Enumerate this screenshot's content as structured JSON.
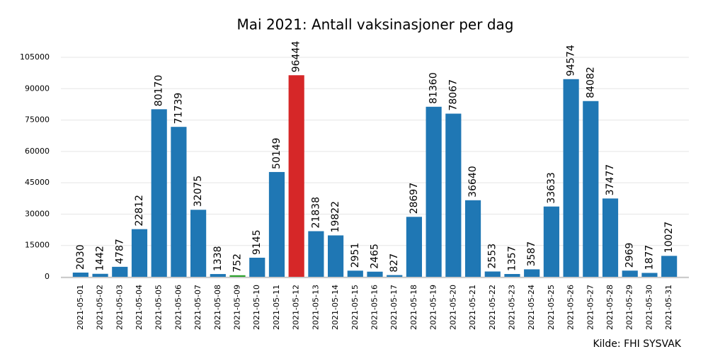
{
  "chart_data": {
    "type": "bar",
    "title": "Mai 2021: Antall vaksinasjoner per dag",
    "source": "Kilde: FHI SYSVAK",
    "categories": [
      "2021-05-01",
      "2021-05-02",
      "2021-05-03",
      "2021-05-04",
      "2021-05-05",
      "2021-05-06",
      "2021-05-07",
      "2021-05-08",
      "2021-05-09",
      "2021-05-10",
      "2021-05-11",
      "2021-05-12",
      "2021-05-13",
      "2021-05-14",
      "2021-05-15",
      "2021-05-16",
      "2021-05-17",
      "2021-05-18",
      "2021-05-19",
      "2021-05-20",
      "2021-05-21",
      "2021-05-22",
      "2021-05-23",
      "2021-05-24",
      "2021-05-25",
      "2021-05-26",
      "2021-05-27",
      "2021-05-28",
      "2021-05-29",
      "2021-05-30",
      "2021-05-31"
    ],
    "values": [
      2030,
      1442,
      4787,
      22812,
      80170,
      71739,
      32075,
      1338,
      752,
      9145,
      50149,
      96444,
      21838,
      19822,
      2951,
      2465,
      827,
      28697,
      81360,
      78067,
      36640,
      2553,
      1357,
      3587,
      33633,
      94574,
      84082,
      37477,
      2969,
      1877,
      10027
    ],
    "colors": [
      "#1f77b4",
      "#1f77b4",
      "#1f77b4",
      "#1f77b4",
      "#1f77b4",
      "#1f77b4",
      "#1f77b4",
      "#1f77b4",
      "#2ca02c",
      "#1f77b4",
      "#1f77b4",
      "#d62728",
      "#1f77b4",
      "#1f77b4",
      "#1f77b4",
      "#1f77b4",
      "#1f77b4",
      "#1f77b4",
      "#1f77b4",
      "#1f77b4",
      "#1f77b4",
      "#1f77b4",
      "#1f77b4",
      "#1f77b4",
      "#1f77b4",
      "#1f77b4",
      "#1f77b4",
      "#1f77b4",
      "#1f77b4",
      "#1f77b4",
      "#1f77b4"
    ],
    "ylim": [
      0,
      105000
    ],
    "yticks": [
      0,
      15000,
      30000,
      45000,
      60000,
      75000,
      90000,
      105000
    ],
    "grid": true
  }
}
